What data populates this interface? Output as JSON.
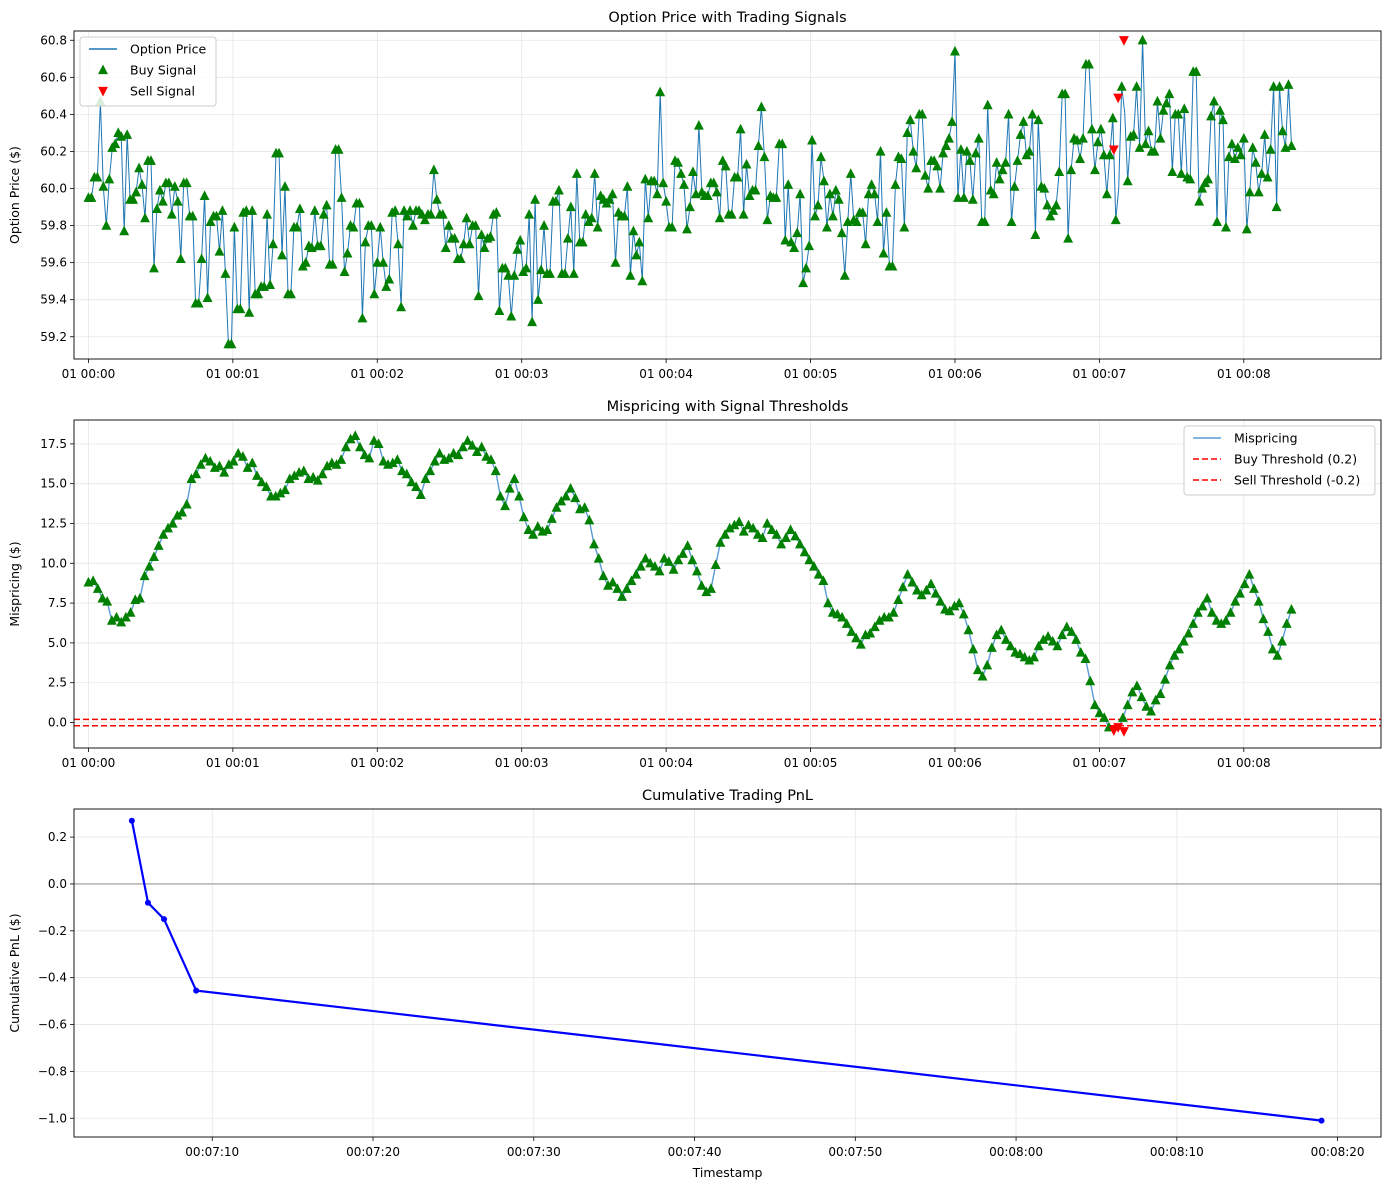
{
  "chart_data": [
    {
      "type": "line",
      "title": "Option Price with Trading Signals",
      "xlabel": "",
      "ylabel": "Option Price ($)",
      "xlim": [
        -0.1,
        8.95
      ],
      "ylim": [
        59.08,
        60.85
      ],
      "x_unit": "minutes after 01 00:00",
      "x_ticks": [
        {
          "value": 0,
          "label": "01 00:00"
        },
        {
          "value": 1,
          "label": "01 00:01"
        },
        {
          "value": 2,
          "label": "01 00:02"
        },
        {
          "value": 3,
          "label": "01 00:03"
        },
        {
          "value": 4,
          "label": "01 00:04"
        },
        {
          "value": 5,
          "label": "01 00:05"
        },
        {
          "value": 6,
          "label": "01 00:06"
        },
        {
          "value": 7,
          "label": "01 00:07"
        },
        {
          "value": 8,
          "label": "01 00:08"
        }
      ],
      "y_ticks": [
        {
          "value": 59.2,
          "label": "59.2"
        },
        {
          "value": 59.4,
          "label": "59.4"
        },
        {
          "value": 59.6,
          "label": "59.6"
        },
        {
          "value": 59.8,
          "label": "59.8"
        },
        {
          "value": 60.0,
          "label": "60.0"
        },
        {
          "value": 60.2,
          "label": "60.2"
        },
        {
          "value": 60.4,
          "label": "60.4"
        },
        {
          "value": 60.6,
          "label": "60.6"
        },
        {
          "value": 60.8,
          "label": "60.8"
        }
      ],
      "grid": true,
      "legend_position": "upper-left",
      "legend": [
        {
          "label": "Option Price",
          "kind": "line",
          "color": "#1f77b4"
        },
        {
          "label": "Buy Signal",
          "kind": "triangle-up",
          "color": "#008000"
        },
        {
          "label": "Sell Signal",
          "kind": "triangle-down",
          "color": "#ff0000"
        }
      ],
      "series": [
        {
          "name": "Option Price",
          "color": "#1f77b4",
          "x_range": [
            0,
            8.33
          ],
          "y": [
            59.95,
            59.95,
            60.06,
            60.06,
            60.47,
            60.01,
            59.8,
            60.05,
            60.22,
            60.24,
            60.3,
            60.28,
            59.77,
            60.29,
            59.94,
            59.94,
            59.98,
            60.11,
            60.02,
            59.84,
            60.15,
            60.15,
            59.57,
            59.89,
            59.99,
            59.93,
            60.03,
            60.03,
            59.86,
            60.01,
            59.93,
            59.62,
            60.03,
            60.03,
            59.85,
            59.85,
            59.38,
            59.38,
            59.62,
            59.96,
            59.41,
            59.82,
            59.85,
            59.85,
            59.66,
            59.88,
            59.54,
            59.16,
            59.16,
            59.79,
            59.35,
            59.35,
            59.87,
            59.88,
            59.33,
            59.88,
            59.43,
            59.43,
            59.47,
            59.47,
            59.86,
            59.48,
            59.7,
            60.19,
            60.19,
            59.64,
            60.01,
            59.43,
            59.43,
            59.79,
            59.79,
            59.89,
            59.58,
            59.6,
            59.69,
            59.68,
            59.88,
            59.69,
            59.69,
            59.86,
            59.91,
            59.59,
            59.59,
            60.21,
            60.21,
            59.95,
            59.55,
            59.65,
            59.8,
            59.79,
            59.92,
            59.92,
            59.3,
            59.71,
            59.8,
            59.8,
            59.43,
            59.6,
            59.79,
            59.6,
            59.47,
            59.51,
            59.87,
            59.88,
            59.7,
            59.36,
            59.88,
            59.85,
            59.88,
            59.8,
            59.88,
            59.88,
            59.86,
            59.83,
            59.86,
            59.86,
            60.1,
            59.94,
            59.86,
            59.86,
            59.68,
            59.8,
            59.73,
            59.73,
            59.62,
            59.62,
            59.7,
            59.84,
            59.7,
            59.8,
            59.8,
            59.42,
            59.75,
            59.68,
            59.73,
            59.74,
            59.86,
            59.87,
            59.34,
            59.57,
            59.57,
            59.53,
            59.31,
            59.53,
            59.67,
            59.72,
            59.55,
            59.57,
            59.86,
            59.28,
            59.94,
            59.4,
            59.56,
            59.8,
            59.54,
            59.54,
            59.93,
            59.93,
            59.99,
            59.54,
            59.54,
            59.73,
            59.9,
            59.54,
            60.08,
            59.71,
            59.71,
            59.86,
            59.82,
            59.84,
            60.08,
            59.79,
            59.96,
            59.94,
            59.92,
            59.94,
            59.97,
            59.6,
            59.87,
            59.85,
            59.85,
            60.01,
            59.53,
            59.77,
            59.64,
            59.71,
            59.5,
            60.05,
            59.84,
            60.04,
            60.04,
            59.97,
            60.52,
            60.03,
            59.93,
            59.79,
            59.79,
            60.15,
            60.14,
            60.08,
            60.02,
            59.78,
            59.9,
            60.09,
            59.97,
            60.34,
            59.98,
            59.96,
            59.96,
            60.03,
            60.03,
            59.98,
            59.84,
            60.15,
            60.12,
            59.86,
            59.86,
            60.06,
            60.06,
            60.32,
            59.86,
            60.13,
            59.96,
            59.99,
            59.99,
            60.23,
            60.44,
            60.17,
            59.83,
            59.96,
            59.95,
            59.95,
            60.24,
            60.24,
            59.72,
            60.02,
            59.71,
            59.68,
            59.76,
            59.97,
            59.49,
            59.57,
            59.69,
            60.26,
            59.85,
            59.91,
            60.17,
            60.04,
            59.79,
            59.97,
            59.85,
            59.99,
            59.94,
            59.76,
            59.53,
            59.82,
            60.08,
            59.83,
            59.82,
            59.87,
            59.87,
            59.7,
            59.97,
            60.02,
            59.97,
            59.82,
            60.2,
            59.65,
            59.87,
            59.58,
            59.58,
            60.02,
            60.17,
            60.16,
            59.79,
            60.3,
            60.37,
            60.2,
            60.11,
            60.4,
            60.4,
            60.07,
            60.0,
            60.15,
            60.15,
            60.12,
            60.0,
            60.19,
            60.23,
            60.27,
            60.36,
            60.74,
            59.95,
            60.21,
            59.95,
            60.2,
            60.15,
            59.94,
            60.19,
            60.27,
            59.82,
            59.82,
            60.45,
            59.99,
            59.97,
            60.14,
            60.05,
            60.1,
            60.14,
            60.4,
            59.82,
            60.01,
            60.15,
            60.29,
            60.36,
            60.18,
            60.2,
            60.4,
            59.75,
            60.37,
            60.01,
            60.0,
            59.91,
            59.85,
            59.88,
            59.91,
            60.09,
            60.51,
            60.51,
            59.73,
            60.1,
            60.27,
            60.26,
            60.16,
            60.27,
            60.67,
            60.67,
            60.32,
            60.1,
            60.25,
            60.32,
            60.18,
            59.97,
            60.18,
            60.38,
            59.83,
            60.0,
            60.55,
            60.41,
            60.04,
            60.28,
            60.29,
            60.55,
            60.22,
            60.8,
            60.24,
            60.31,
            60.2,
            60.2,
            60.47,
            60.27,
            60.42,
            60.46,
            60.51,
            60.09,
            60.4,
            60.4,
            60.08,
            60.43,
            60.06,
            60.05,
            60.63,
            60.63,
            59.93,
            60.0,
            60.03,
            60.05,
            60.39,
            60.47,
            59.82,
            60.42,
            60.37,
            59.79,
            60.17,
            60.24,
            60.16,
            60.22,
            60.18,
            60.27,
            59.78,
            59.98,
            60.22,
            60.14,
            59.98,
            60.08,
            60.29,
            60.06,
            60.21,
            60.55,
            59.9,
            60.55,
            60.31,
            60.22,
            60.56,
            60.23
          ]
        }
      ],
      "buy_signals": "all price points except the sell points",
      "sell_signals": {
        "x": [
          7.1,
          7.13,
          7.17
        ],
        "y": [
          60.21,
          60.49,
          60.8
        ]
      }
    },
    {
      "type": "line",
      "title": "Mispricing with Signal Thresholds",
      "xlabel": "",
      "ylabel": "Mispricing ($)",
      "xlim": [
        -0.1,
        8.95
      ],
      "ylim": [
        -1.6,
        19.0
      ],
      "x_ticks": [
        {
          "value": 0,
          "label": "01 00:00"
        },
        {
          "value": 1,
          "label": "01 00:01"
        },
        {
          "value": 2,
          "label": "01 00:02"
        },
        {
          "value": 3,
          "label": "01 00:03"
        },
        {
          "value": 4,
          "label": "01 00:04"
        },
        {
          "value": 5,
          "label": "01 00:05"
        },
        {
          "value": 6,
          "label": "01 00:06"
        },
        {
          "value": 7,
          "label": "01 00:07"
        },
        {
          "value": 8,
          "label": "01 00:08"
        }
      ],
      "y_ticks": [
        {
          "value": 0.0,
          "label": "0.0"
        },
        {
          "value": 2.5,
          "label": "2.5"
        },
        {
          "value": 5.0,
          "label": "5.0"
        },
        {
          "value": 7.5,
          "label": "7.5"
        },
        {
          "value": 10.0,
          "label": "10.0"
        },
        {
          "value": 12.5,
          "label": "12.5"
        },
        {
          "value": 15.0,
          "label": "15.0"
        },
        {
          "value": 17.5,
          "label": "17.5"
        }
      ],
      "grid": true,
      "legend_position": "upper-right",
      "legend": [
        {
          "label": "Mispricing",
          "kind": "line",
          "color": "#5a9bd5"
        },
        {
          "label": "Buy Threshold (0.2)",
          "kind": "dashed",
          "color": "#ff0000"
        },
        {
          "label": "Sell Threshold (-0.2)",
          "kind": "dashed",
          "color": "#ff0000"
        }
      ],
      "thresholds": [
        0.2,
        -0.2
      ],
      "series": [
        {
          "name": "Mispricing",
          "color": "#5a9bd5",
          "x_range": [
            0,
            8.33
          ],
          "y": [
            8.8,
            8.9,
            8.4,
            7.8,
            7.6,
            6.4,
            6.6,
            6.3,
            6.6,
            6.9,
            7.7,
            7.8,
            9.2,
            9.8,
            10.4,
            11.1,
            11.8,
            12.2,
            12.5,
            13.0,
            13.2,
            13.7,
            15.3,
            15.6,
            16.2,
            16.6,
            16.4,
            16.0,
            16.1,
            15.7,
            16.2,
            16.4,
            16.9,
            16.7,
            16.0,
            16.3,
            15.5,
            15.1,
            14.8,
            14.2,
            14.2,
            14.4,
            14.6,
            15.3,
            15.5,
            15.7,
            15.8,
            15.3,
            15.4,
            15.2,
            15.6,
            16.1,
            16.3,
            16.2,
            16.5,
            17.3,
            17.8,
            18.0,
            17.3,
            16.8,
            16.6,
            17.7,
            17.5,
            16.4,
            16.2,
            16.3,
            16.5,
            15.8,
            15.6,
            15.1,
            14.8,
            14.3,
            15.3,
            15.8,
            16.4,
            16.9,
            16.5,
            16.6,
            16.9,
            16.8,
            17.3,
            17.7,
            17.4,
            17.0,
            17.3,
            16.7,
            16.5,
            15.8,
            14.2,
            13.6,
            14.7,
            15.3,
            14.2,
            12.9,
            12.1,
            11.8,
            12.3,
            12.0,
            12.1,
            12.8,
            13.5,
            13.9,
            14.2,
            14.7,
            14.1,
            13.4,
            13.5,
            12.7,
            11.2,
            10.3,
            9.2,
            8.6,
            8.8,
            8.4,
            7.9,
            8.4,
            8.9,
            9.3,
            9.8,
            10.3,
            10.0,
            9.8,
            9.5,
            10.3,
            10.1,
            9.6,
            10.2,
            10.6,
            11.1,
            10.2,
            9.5,
            8.6,
            8.2,
            8.4,
            9.9,
            11.3,
            11.8,
            12.2,
            12.4,
            12.6,
            12.0,
            12.4,
            12.2,
            11.8,
            11.6,
            12.5,
            12.1,
            11.8,
            11.2,
            11.6,
            12.1,
            11.7,
            11.2,
            10.7,
            10.2,
            9.8,
            9.3,
            8.9,
            7.5,
            6.9,
            6.8,
            6.6,
            6.2,
            5.7,
            5.3,
            4.9,
            5.5,
            5.6,
            6.0,
            6.4,
            6.6,
            6.6,
            6.9,
            7.7,
            8.5,
            9.3,
            8.8,
            8.3,
            8.0,
            8.3,
            8.7,
            8.1,
            7.6,
            7.1,
            7.0,
            7.3,
            7.5,
            6.8,
            5.8,
            4.6,
            3.3,
            2.9,
            3.6,
            4.7,
            5.5,
            5.8,
            5.2,
            4.8,
            4.4,
            4.3,
            4.1,
            3.9,
            4.1,
            4.8,
            5.2,
            5.4,
            5.1,
            4.8,
            5.5,
            6.0,
            5.7,
            5.2,
            4.4,
            4.0,
            2.6,
            1.1,
            0.6,
            0.3,
            -0.3,
            -0.5,
            -0.4,
            0.3,
            1.1,
            1.9,
            2.3,
            1.6,
            1.0,
            0.7,
            1.4,
            1.8,
            2.7,
            3.6,
            4.2,
            4.6,
            5.1,
            5.6,
            6.2,
            6.9,
            7.3,
            7.8,
            6.9,
            6.4,
            6.2,
            6.4,
            6.9,
            7.6,
            8.1,
            8.7,
            9.3,
            8.4,
            7.6,
            6.5,
            5.7,
            4.6,
            4.2,
            5.1,
            6.2,
            7.1
          ]
        }
      ],
      "sell_signals": {
        "x": [
          7.1,
          7.13,
          7.17
        ],
        "y": [
          -0.5,
          -0.3,
          -0.55
        ]
      }
    },
    {
      "type": "line",
      "title": "Cumulative Trading PnL",
      "xlabel": "Timestamp",
      "ylabel": "Cumulative PnL ($)",
      "x_unit": "seconds after 00:07:00",
      "xlim": [
        1.4,
        82.7
      ],
      "ylim": [
        -1.08,
        0.32
      ],
      "x_ticks": [
        {
          "value": 10,
          "label": "00:07:10"
        },
        {
          "value": 20,
          "label": "00:07:20"
        },
        {
          "value": 30,
          "label": "00:07:30"
        },
        {
          "value": 40,
          "label": "00:07:40"
        },
        {
          "value": 50,
          "label": "00:07:50"
        },
        {
          "value": 60,
          "label": "00:08:00"
        },
        {
          "value": 70,
          "label": "00:08:10"
        },
        {
          "value": 80,
          "label": "00:08:20"
        }
      ],
      "y_ticks": [
        {
          "value": -1.0,
          "label": "−1.0"
        },
        {
          "value": -0.8,
          "label": "−0.8"
        },
        {
          "value": -0.6,
          "label": "−0.6"
        },
        {
          "value": -0.4,
          "label": "−0.4"
        },
        {
          "value": -0.2,
          "label": "−0.2"
        },
        {
          "value": 0.0,
          "label": "0.0"
        },
        {
          "value": 0.2,
          "label": "0.2"
        }
      ],
      "grid": true,
      "zero_line": true,
      "series": [
        {
          "name": "Cumulative PnL",
          "color": "#0000ff",
          "x": [
            5,
            6,
            7,
            9,
            79
          ],
          "y": [
            0.27,
            -0.08,
            -0.15,
            -0.455,
            -1.01
          ]
        }
      ]
    }
  ]
}
